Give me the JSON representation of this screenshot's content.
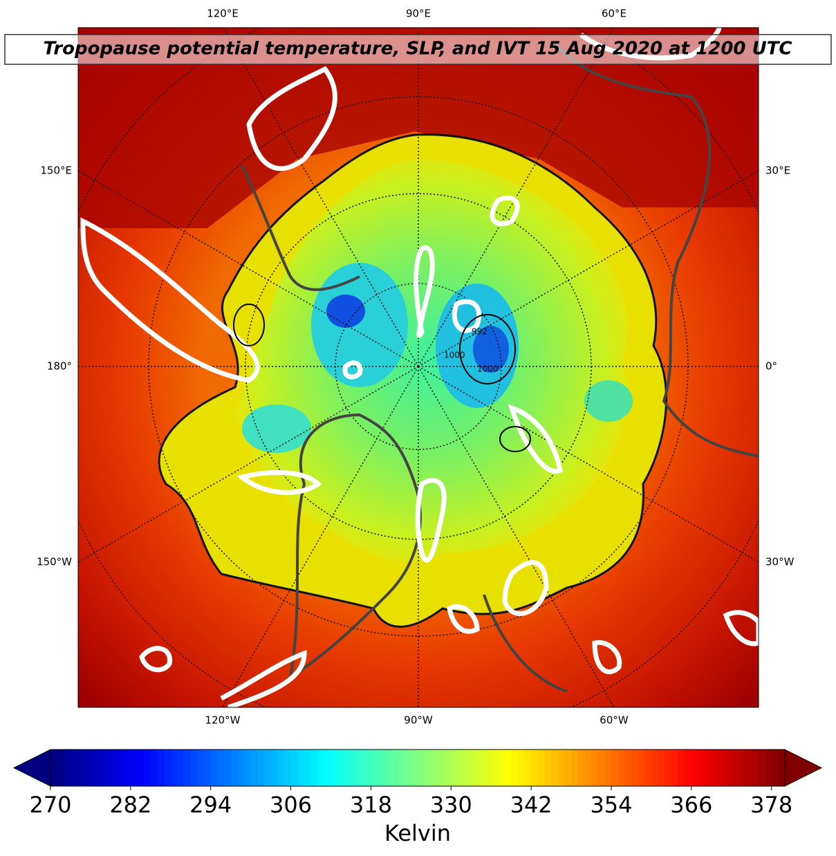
{
  "map": {
    "title": "Tropopause potential temperature, SLP, and IVT 15 Aug 2020 at 1200 UTC",
    "lon_labels_top": [
      "120°E",
      "90°E",
      "60°E"
    ],
    "lon_labels_left": [
      "150°E",
      "180°",
      "150°W"
    ],
    "lon_labels_right": [
      "30°E",
      "0°",
      "30°W"
    ],
    "lon_labels_bottom": [
      "120°W",
      "90°W",
      "60°W"
    ],
    "contour_labels": [
      "992",
      "1000",
      "1000"
    ]
  },
  "colorbar": {
    "label": "Kelvin",
    "colormap": "jet",
    "lim": [
      270,
      380
    ],
    "ticks": [
      270,
      282,
      294,
      306,
      318,
      330,
      342,
      354,
      366,
      378
    ]
  }
}
